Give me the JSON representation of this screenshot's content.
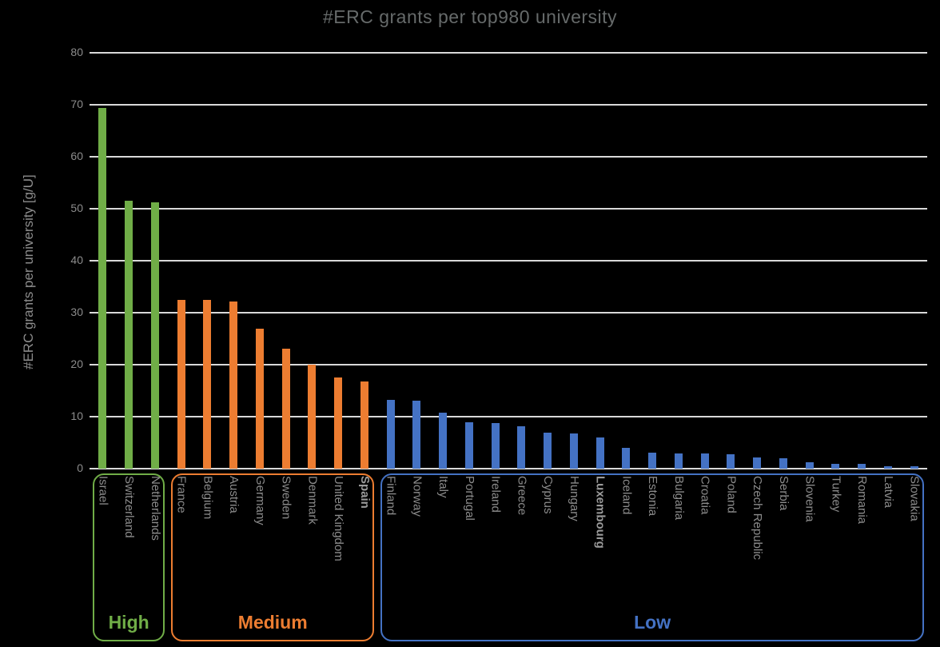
{
  "title": "#ERC grants per top980 university",
  "y_axis_title": "#ERC grants per university [g/U]",
  "colors": {
    "background": "#000000",
    "gridline": "#d9d9d9",
    "axis_text": "#8c8c8c",
    "title_text": "#666a6a",
    "high": "#70AD47",
    "medium": "#ED7D31",
    "low": "#4472C4"
  },
  "chart_data": {
    "type": "bar",
    "title": "#ERC grants per top980 university",
    "xlabel": "",
    "ylabel": "#ERC grants per university [g/U]",
    "ylim": [
      0,
      80
    ],
    "yticks": [
      80,
      70,
      60,
      50,
      40,
      30,
      20,
      10,
      0
    ],
    "grid": true,
    "legend": false,
    "categories": [
      "Israel",
      "Switzerland",
      "Netherlands",
      "France",
      "Belgium",
      "Austria",
      "Germany",
      "Sweden",
      "Denmark",
      "United Kingdom",
      "Spain",
      "Finland",
      "Norway",
      "Italy",
      "Portugal",
      "Ireland",
      "Greece",
      "Cyprus",
      "Hungary",
      "Luxembourg",
      "Iceland",
      "Estonia",
      "Bulgaria",
      "Croatia",
      "Poland",
      "Czech Republic",
      "Serbia",
      "Slovenia",
      "Turkey",
      "Romania",
      "Latvia",
      "Slovakia"
    ],
    "values": [
      69.4,
      51.5,
      51.2,
      32.4,
      32.4,
      32.1,
      27.0,
      23.1,
      20.0,
      17.5,
      16.7,
      13.2,
      13.1,
      10.7,
      8.9,
      8.7,
      8.1,
      7.0,
      6.8,
      6.0,
      4.0,
      3.1,
      3.0,
      2.9,
      2.8,
      2.1,
      2.0,
      1.3,
      0.9,
      0.9,
      0.5,
      0.5
    ],
    "bold_categories": [
      "Spain",
      "Luxembourg"
    ],
    "bar_groups": [
      {
        "label": "High",
        "color_key": "high",
        "start_index": 0,
        "end_index": 2
      },
      {
        "label": "Medium",
        "color_key": "medium",
        "start_index": 3,
        "end_index": 10
      },
      {
        "label": "Low",
        "color_key": "low",
        "start_index": 11,
        "end_index": 31
      }
    ]
  }
}
